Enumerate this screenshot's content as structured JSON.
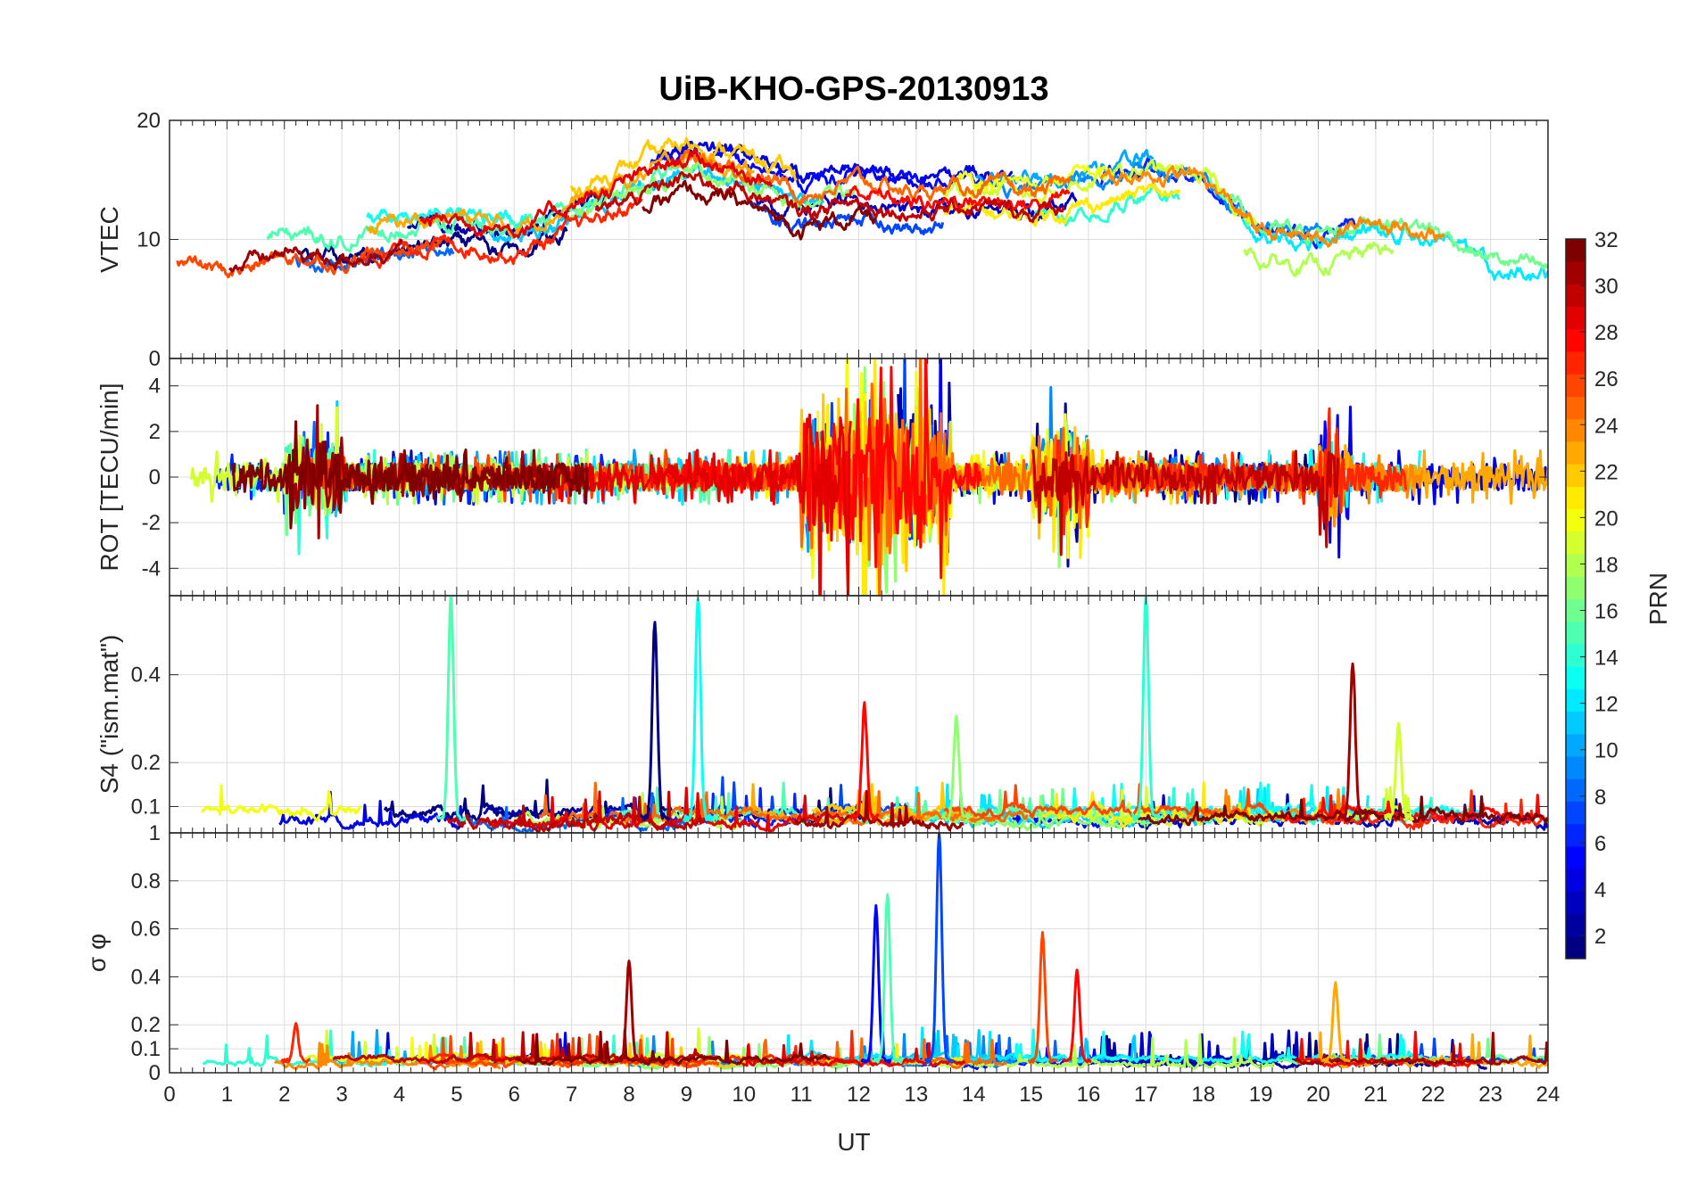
{
  "chart_data": {
    "type": "line",
    "title": "UiB-KHO-GPS-20130913",
    "xlabel": "UT",
    "xlim": [
      0,
      24
    ],
    "xticks": [
      "0",
      "1",
      "2",
      "3",
      "4",
      "5",
      "6",
      "7",
      "8",
      "9",
      "10",
      "11",
      "12",
      "13",
      "14",
      "15",
      "16",
      "17",
      "18",
      "19",
      "20",
      "21",
      "22",
      "23",
      "24"
    ],
    "panels": [
      {
        "id": "vtec",
        "ylabel": "VTEC",
        "ylim": [
          0,
          20
        ],
        "yticks": [
          "0",
          "10",
          "20"
        ],
        "ytick_values": [
          0,
          10,
          20
        ],
        "envelope": [
          [
            0,
            9.8
          ],
          [
            1,
            8.5
          ],
          [
            2,
            10
          ],
          [
            3,
            9.5
          ],
          [
            4,
            10.5
          ],
          [
            5,
            11
          ],
          [
            6,
            10
          ],
          [
            7,
            12
          ],
          [
            8,
            14
          ],
          [
            9,
            16
          ],
          [
            10,
            15
          ],
          [
            11,
            13
          ],
          [
            12,
            14
          ],
          [
            13,
            13
          ],
          [
            14,
            13.5
          ],
          [
            15,
            13
          ],
          [
            16,
            14
          ],
          [
            17,
            15
          ],
          [
            18,
            14.5
          ],
          [
            19,
            10
          ],
          [
            20,
            9.5
          ],
          [
            21,
            11
          ],
          [
            22,
            10
          ],
          [
            23,
            7.5
          ],
          [
            24,
            6.5
          ]
        ],
        "spread": 2.2,
        "noise": 0.8
      },
      {
        "id": "rot",
        "ylabel": "ROT [TECU/min]",
        "ylim": [
          -5.2,
          5.2
        ],
        "yticks": [
          "-4",
          "-2",
          "0",
          "2",
          "4"
        ],
        "ytick_values": [
          -4,
          -2,
          0,
          2,
          4
        ],
        "envelope": [
          [
            0,
            0
          ],
          [
            24,
            0
          ]
        ],
        "spread": 0,
        "noise": 0.6,
        "burst_windows": [
          [
            2,
            3,
            1.8
          ],
          [
            11,
            13.6,
            3.6
          ],
          [
            15,
            16,
            2.4
          ],
          [
            20,
            20.6,
            2
          ]
        ]
      },
      {
        "id": "s4",
        "ylabel": "S4 (\"ism.mat\")",
        "ylim": [
          0.04,
          0.58
        ],
        "yticks": [
          "0.1",
          "0.2",
          "0.4"
        ],
        "ytick_values": [
          0.1,
          0.2,
          0.4
        ],
        "envelope": [
          [
            0,
            0.075
          ],
          [
            24,
            0.075
          ]
        ],
        "spread": 0.02,
        "noise": 0.015,
        "spikes": [
          [
            4.9,
            0.58,
            15
          ],
          [
            8.45,
            0.52,
            1
          ],
          [
            9.2,
            0.58,
            13
          ],
          [
            12.1,
            0.33,
            28
          ],
          [
            17,
            0.58,
            14
          ],
          [
            20.6,
            0.43,
            31
          ],
          [
            13.7,
            0.3,
            17
          ],
          [
            21.4,
            0.29,
            19
          ]
        ]
      },
      {
        "id": "sigma_phi",
        "ylabel": "σ φ",
        "ylim": [
          0,
          1
        ],
        "yticks": [
          "0",
          "0.1",
          "0.2",
          "0.4",
          "0.6",
          "0.8",
          "1"
        ],
        "ytick_values": [
          0,
          0.1,
          0.2,
          0.4,
          0.6,
          0.8,
          1
        ],
        "envelope": [
          [
            0,
            0.05
          ],
          [
            24,
            0.05
          ]
        ],
        "spread": 0.015,
        "noise": 0.015,
        "spikes": [
          [
            8,
            0.46,
            31
          ],
          [
            12.3,
            0.69,
            5
          ],
          [
            12.5,
            0.75,
            15
          ],
          [
            13.4,
            1,
            7
          ],
          [
            15.2,
            0.58,
            26
          ],
          [
            15.8,
            0.43,
            28
          ],
          [
            20.3,
            0.37,
            23
          ],
          [
            2.2,
            0.2,
            27
          ]
        ]
      }
    ],
    "colorbar": {
      "label": "PRN",
      "range": [
        1,
        32
      ],
      "ticks": [
        "2",
        "4",
        "6",
        "8",
        "10",
        "12",
        "14",
        "16",
        "18",
        "20",
        "22",
        "24",
        "26",
        "28",
        "30",
        "32"
      ],
      "tick_values": [
        2,
        4,
        6,
        8,
        10,
        12,
        14,
        16,
        18,
        20,
        22,
        24,
        26,
        28,
        30,
        32
      ],
      "colormap": "jet"
    },
    "series_count": 32
  }
}
